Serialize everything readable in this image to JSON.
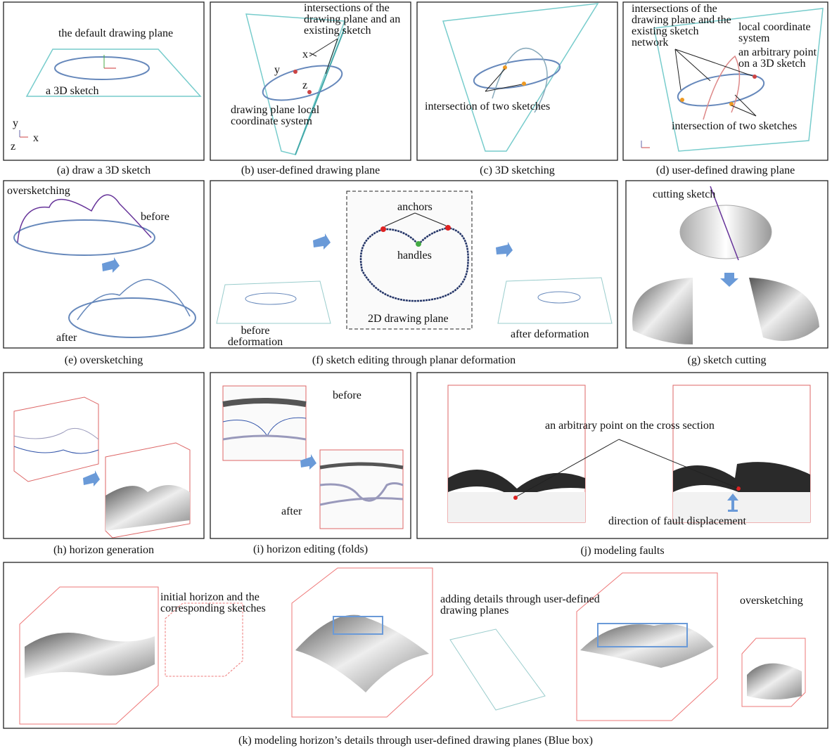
{
  "panels": [
    {
      "caption": "(a) draw a 3D sketch",
      "labels": [
        "the default drawing plane",
        "a 3D sketch",
        "y",
        "z",
        "x"
      ]
    },
    {
      "caption": "(b) user-defined drawing plane",
      "labels": [
        "intersections of the drawing plane and an existing sketch",
        "x",
        "y",
        "z",
        "drawing plane local coordinate system"
      ]
    },
    {
      "caption": "(c) 3D sketching",
      "labels": [
        "intersection of two sketches"
      ]
    },
    {
      "caption": "(d) user-defined drawing plane",
      "labels": [
        "intersections of the drawing plane and the existing sketch network",
        "local coordinate system",
        "an arbitrary point on a 3D sketch",
        "intersection of two sketches"
      ]
    },
    {
      "caption": "(e) oversketching",
      "labels": [
        "oversketching",
        "before",
        "after"
      ]
    },
    {
      "caption": "(f) sketch editing through planar deformation",
      "labels": [
        "anchors",
        "handles",
        "2D drawing plane",
        "before deformation",
        "after deformation"
      ]
    },
    {
      "caption": "(g) sketch cutting",
      "labels": [
        "cutting sketch"
      ]
    },
    {
      "caption": "(h) horizon generation",
      "labels": []
    },
    {
      "caption": "(i) horizon editing (folds)",
      "labels": [
        "before",
        "after"
      ]
    },
    {
      "caption": "(j) modeling faults",
      "labels": [
        "an arbitrary point on the cross section",
        "direction of fault displacement"
      ]
    },
    {
      "caption": "(k) modeling horizon’s details through user-defined drawing planes (Blue box)",
      "labels": [
        "initial horizon and the corresponding sketches",
        "adding details through user-defined drawing planes",
        "oversketching"
      ]
    }
  ]
}
